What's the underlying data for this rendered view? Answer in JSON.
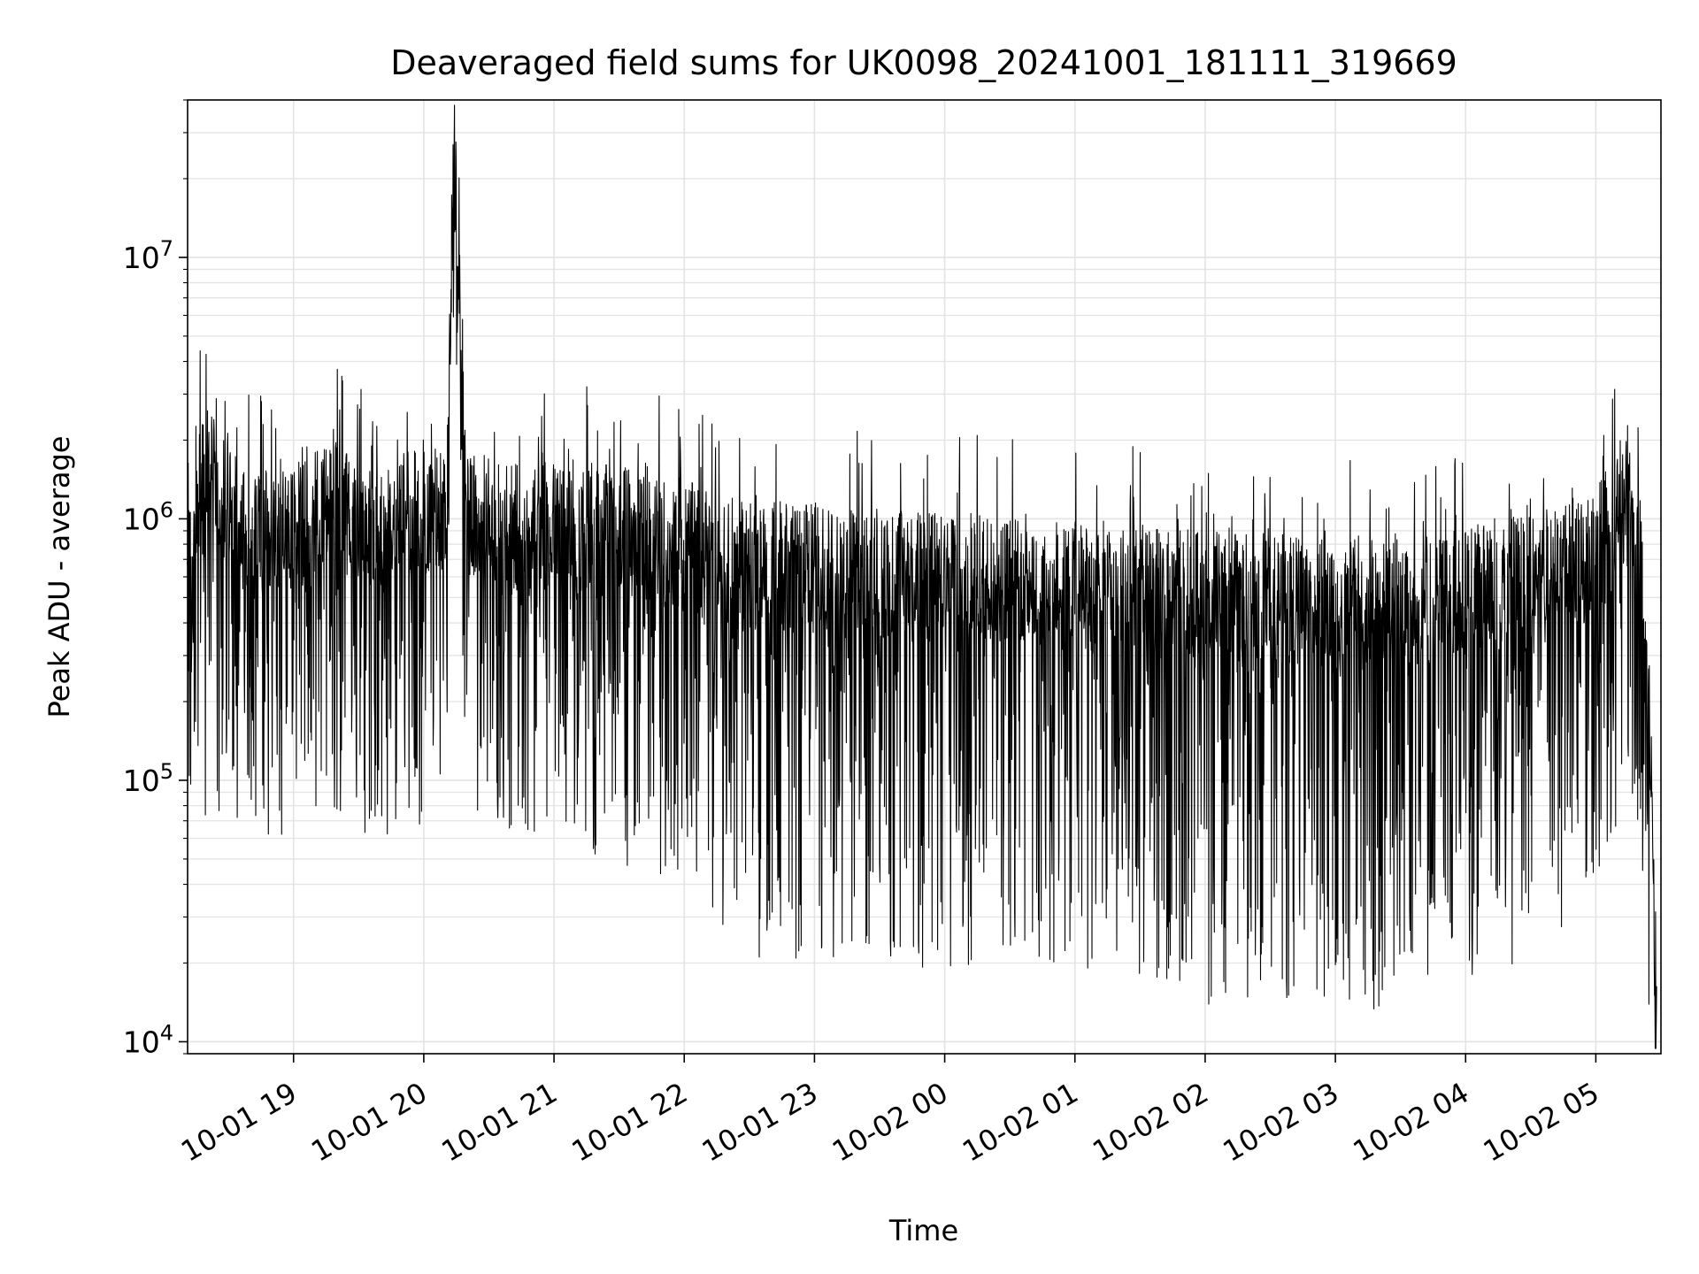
{
  "chart_data": {
    "type": "line",
    "title": "Deaveraged field sums for UK0098_20241001_181111_319669",
    "xlabel": "Time",
    "ylabel": "Peak ADU - average",
    "x_range": [
      "2024-10-01 18:11:11",
      "2024-10-02 05:30:00"
    ],
    "y_scale": "log",
    "ylim": [
      9000,
      40000000
    ],
    "x_ticks": [
      "10-01 19",
      "10-01 20",
      "10-01 21",
      "10-01 22",
      "10-01 23",
      "10-02 00",
      "10-02 01",
      "10-02 02",
      "10-02 03",
      "10-02 04",
      "10-02 05"
    ],
    "y_ticks": [
      {
        "value": 10000,
        "base": "10",
        "exp": "4"
      },
      {
        "value": 100000,
        "base": "10",
        "exp": "5"
      },
      {
        "value": 1000000,
        "base": "10",
        "exp": "6"
      },
      {
        "value": 10000000,
        "base": "10",
        "exp": "7"
      }
    ],
    "grid": true,
    "line_color": "#000000",
    "series": [
      {
        "x": [
          "18:11",
          "18:20",
          "18:30",
          "18:40",
          "18:50",
          "19:00",
          "19:10",
          "19:20",
          "19:30",
          "19:40",
          "19:50",
          "20:00",
          "20:10",
          "20:14",
          "20:20",
          "20:30",
          "20:40",
          "20:50",
          "21:00",
          "21:15",
          "21:30",
          "21:45",
          "22:00",
          "22:15",
          "22:30",
          "22:45",
          "23:00",
          "23:15",
          "23:30",
          "23:45",
          "00:00",
          "00:15",
          "00:30",
          "00:45",
          "01:00",
          "01:15",
          "01:30",
          "01:45",
          "02:00",
          "02:15",
          "02:30",
          "02:45",
          "03:00",
          "03:15",
          "03:30",
          "03:45",
          "04:00",
          "04:15",
          "04:30",
          "04:45",
          "05:00",
          "05:05",
          "05:10",
          "05:15",
          "05:20",
          "05:25",
          "05:28"
        ],
        "y": [
          900000,
          1500000,
          1200000,
          850000,
          1000000,
          900000,
          1100000,
          1150000,
          950000,
          900000,
          1000000,
          1050000,
          1100000,
          26000000,
          1000000,
          1000000,
          950000,
          900000,
          950000,
          950000,
          900000,
          850000,
          800000,
          700000,
          650000,
          650000,
          650000,
          620000,
          620000,
          600000,
          600000,
          600000,
          600000,
          580000,
          560000,
          550000,
          540000,
          520000,
          500000,
          500000,
          500000,
          480000,
          470000,
          480000,
          480000,
          500000,
          520000,
          560000,
          600000,
          650000,
          750000,
          900000,
          1100000,
          1200000,
          800000,
          150000,
          15000
        ],
        "spread": [
          1.8,
          2.2,
          2.0,
          2.0,
          2.0,
          2.0,
          2.0,
          2.0,
          2.0,
          2.0,
          2.0,
          2.0,
          2.0,
          1.0,
          2.0,
          2.0,
          2.0,
          2.0,
          2.0,
          2.1,
          2.1,
          2.2,
          2.2,
          2.4,
          2.5,
          2.5,
          2.5,
          2.5,
          2.5,
          2.5,
          2.5,
          2.5,
          2.5,
          2.5,
          2.5,
          2.5,
          2.5,
          2.5,
          2.6,
          2.6,
          2.6,
          2.6,
          2.6,
          2.6,
          2.6,
          2.5,
          2.5,
          2.5,
          2.4,
          2.3,
          2.2,
          2.1,
          2.0,
          2.0,
          2.0,
          2.0,
          1.8
        ]
      }
    ]
  }
}
